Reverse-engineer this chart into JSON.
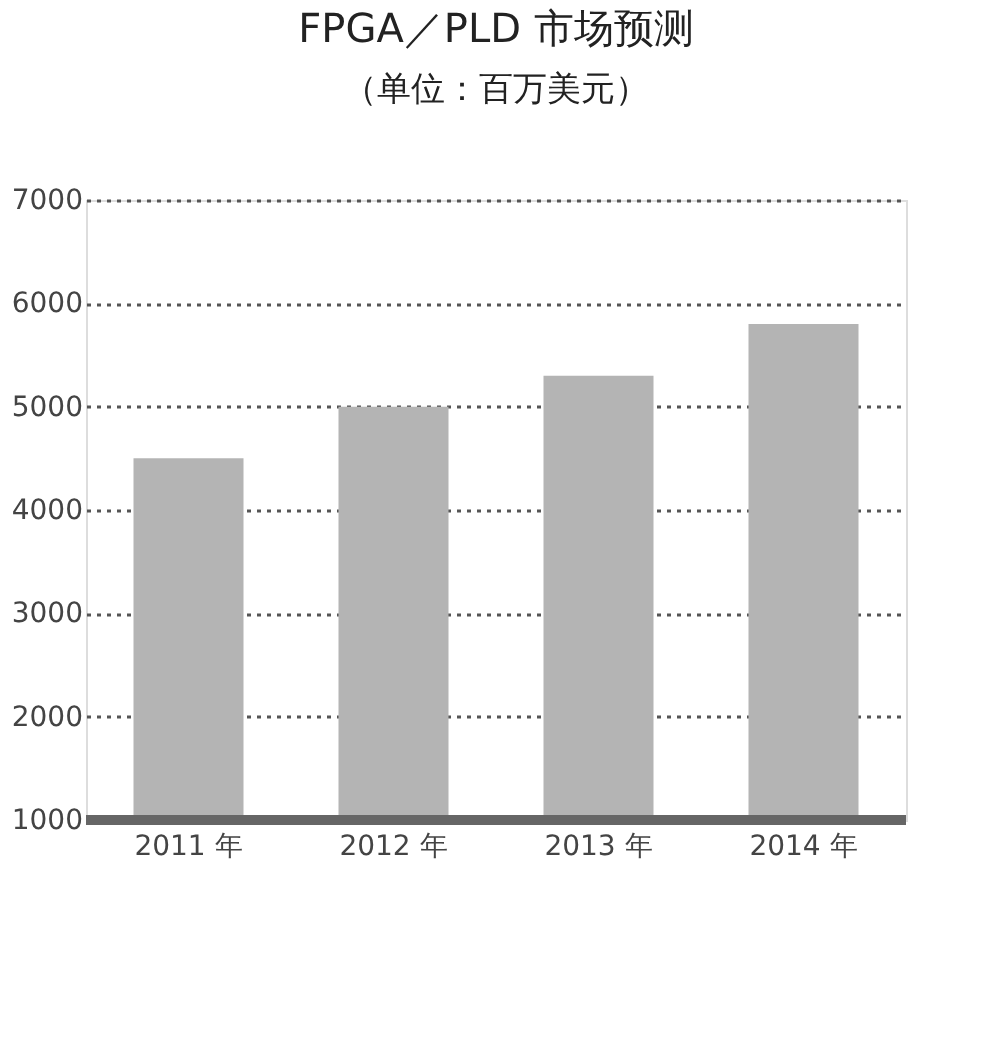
{
  "chart_data": {
    "type": "bar",
    "title": "FPGA／PLD 市场预测",
    "subtitle": "（单位：百万美元）",
    "categories": [
      "2011 年",
      "2012 年",
      "2013 年",
      "2014 年"
    ],
    "values": [
      4500,
      5000,
      5300,
      5800
    ],
    "color": "#b4b4b4",
    "ylim": [
      1000,
      7000
    ],
    "yticks": [
      1000,
      2000,
      3000,
      4000,
      5000,
      6000,
      7000
    ],
    "grid": "y",
    "line_style": "dotted"
  }
}
